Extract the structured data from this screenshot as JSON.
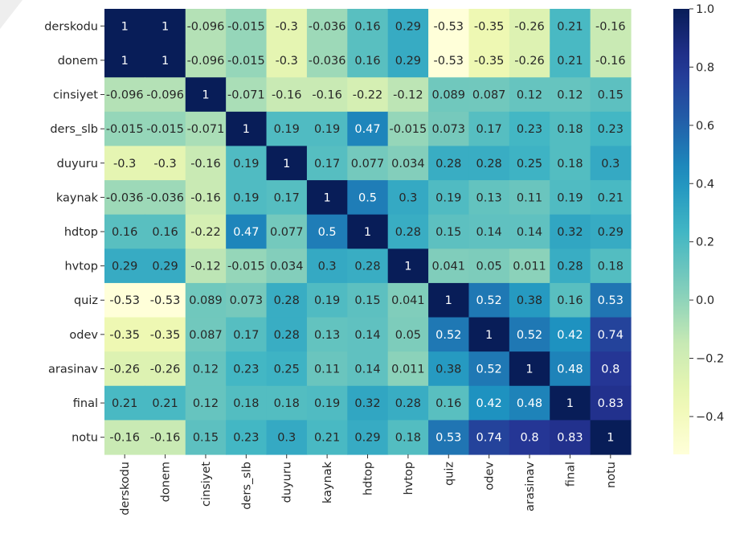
{
  "chart_data": {
    "type": "heatmap",
    "colormap": "YlGnBu",
    "annotated": true,
    "variables": [
      "derskodu",
      "donem",
      "cinsiyet",
      "ders_slb",
      "duyuru",
      "kaynak",
      "hdtop",
      "hvtop",
      "quiz",
      "odev",
      "arasinav",
      "final",
      "notu"
    ],
    "matrix": [
      [
        1,
        1,
        -0.096,
        -0.015,
        -0.3,
        -0.036,
        0.16,
        0.29,
        -0.53,
        -0.35,
        -0.26,
        0.21,
        -0.16
      ],
      [
        1,
        1,
        -0.096,
        -0.015,
        -0.3,
        -0.036,
        0.16,
        0.29,
        -0.53,
        -0.35,
        -0.26,
        0.21,
        -0.16
      ],
      [
        -0.096,
        -0.096,
        1,
        -0.071,
        -0.16,
        -0.16,
        -0.22,
        -0.12,
        0.089,
        0.087,
        0.12,
        0.12,
        0.15
      ],
      [
        -0.015,
        -0.015,
        -0.071,
        1,
        0.19,
        0.19,
        0.47,
        -0.015,
        0.073,
        0.17,
        0.23,
        0.18,
        0.23
      ],
      [
        -0.3,
        -0.3,
        -0.16,
        0.19,
        1,
        0.17,
        0.077,
        0.034,
        0.28,
        0.28,
        0.25,
        0.18,
        0.3
      ],
      [
        -0.036,
        -0.036,
        -0.16,
        0.19,
        0.17,
        1,
        0.5,
        0.3,
        0.19,
        0.13,
        0.11,
        0.19,
        0.21
      ],
      [
        0.16,
        0.16,
        -0.22,
        0.47,
        0.077,
        0.5,
        1,
        0.28,
        0.15,
        0.14,
        0.14,
        0.32,
        0.29
      ],
      [
        0.29,
        0.29,
        -0.12,
        -0.015,
        0.034,
        0.3,
        0.28,
        1,
        0.041,
        0.05,
        0.011,
        0.28,
        0.18
      ],
      [
        -0.53,
        -0.53,
        0.089,
        0.073,
        0.28,
        0.19,
        0.15,
        0.041,
        1,
        0.52,
        0.38,
        0.16,
        0.53
      ],
      [
        -0.35,
        -0.35,
        0.087,
        0.17,
        0.28,
        0.13,
        0.14,
        0.05,
        0.52,
        1,
        0.52,
        0.42,
        0.74
      ],
      [
        -0.26,
        -0.26,
        0.12,
        0.23,
        0.25,
        0.11,
        0.14,
        0.011,
        0.38,
        0.52,
        1,
        0.48,
        0.8
      ],
      [
        0.21,
        0.21,
        0.12,
        0.18,
        0.18,
        0.19,
        0.32,
        0.28,
        0.16,
        0.42,
        0.48,
        1,
        0.83
      ],
      [
        -0.16,
        -0.16,
        0.15,
        0.23,
        0.3,
        0.21,
        0.29,
        0.18,
        0.53,
        0.74,
        0.8,
        0.83,
        1
      ]
    ],
    "labels": [
      [
        "1",
        "1",
        "-0.096",
        "-0.015",
        "-0.3",
        "-0.036",
        "0.16",
        "0.29",
        "-0.53",
        "-0.35",
        "-0.26",
        "0.21",
        "-0.16"
      ],
      [
        "1",
        "1",
        "-0.096",
        "-0.015",
        "-0.3",
        "-0.036",
        "0.16",
        "0.29",
        "-0.53",
        "-0.35",
        "-0.26",
        "0.21",
        "-0.16"
      ],
      [
        "-0.096",
        "-0.096",
        "1",
        "-0.071",
        "-0.16",
        "-0.16",
        "-0.22",
        "-0.12",
        "0.089",
        "0.087",
        "0.12",
        "0.12",
        "0.15"
      ],
      [
        "-0.015",
        "-0.015",
        "-0.071",
        "1",
        "0.19",
        "0.19",
        "0.47",
        "-0.015",
        "0.073",
        "0.17",
        "0.23",
        "0.18",
        "0.23"
      ],
      [
        "-0.3",
        "-0.3",
        "-0.16",
        "0.19",
        "1",
        "0.17",
        "0.077",
        "0.034",
        "0.28",
        "0.28",
        "0.25",
        "0.18",
        "0.3"
      ],
      [
        "-0.036",
        "-0.036",
        "-0.16",
        "0.19",
        "0.17",
        "1",
        "0.5",
        "0.3",
        "0.19",
        "0.13",
        "0.11",
        "0.19",
        "0.21"
      ],
      [
        "0.16",
        "0.16",
        "-0.22",
        "0.47",
        "0.077",
        "0.5",
        "1",
        "0.28",
        "0.15",
        "0.14",
        "0.14",
        "0.32",
        "0.29"
      ],
      [
        "0.29",
        "0.29",
        "-0.12",
        "-0.015",
        "0.034",
        "0.3",
        "0.28",
        "1",
        "0.041",
        "0.05",
        "0.011",
        "0.28",
        "0.18"
      ],
      [
        "-0.53",
        "-0.53",
        "0.089",
        "0.073",
        "0.28",
        "0.19",
        "0.15",
        "0.041",
        "1",
        "0.52",
        "0.38",
        "0.16",
        "0.53"
      ],
      [
        "-0.35",
        "-0.35",
        "0.087",
        "0.17",
        "0.28",
        "0.13",
        "0.14",
        "0.05",
        "0.52",
        "1",
        "0.52",
        "0.42",
        "0.74"
      ],
      [
        "-0.26",
        "-0.26",
        "0.12",
        "0.23",
        "0.25",
        "0.11",
        "0.14",
        "0.011",
        "0.38",
        "0.52",
        "1",
        "0.48",
        "0.8"
      ],
      [
        "0.21",
        "0.21",
        "0.12",
        "0.18",
        "0.18",
        "0.19",
        "0.32",
        "0.28",
        "0.16",
        "0.42",
        "0.48",
        "1",
        "0.83"
      ],
      [
        "-0.16",
        "-0.16",
        "0.15",
        "0.23",
        "0.3",
        "0.21",
        "0.29",
        "0.18",
        "0.53",
        "0.74",
        "0.8",
        "0.83",
        "1"
      ]
    ],
    "vmin": -0.53,
    "vmax": 1.0,
    "colorbar": {
      "position": "right",
      "ticks": [
        1.0,
        0.8,
        0.6,
        0.4,
        0.2,
        0.0,
        -0.2,
        -0.4
      ],
      "tick_labels": [
        "1.0",
        "0.8",
        "0.6",
        "0.4",
        "0.2",
        "0.0",
        "−0.2",
        "−0.4"
      ]
    },
    "colormap_stops": [
      "#ffffd9",
      "#edf8b1",
      "#c7e9b4",
      "#7fcdbb",
      "#41b6c4",
      "#1d91c0",
      "#225ea8",
      "#253494",
      "#081d58"
    ],
    "title": "",
    "xlabel": "",
    "ylabel": ""
  }
}
